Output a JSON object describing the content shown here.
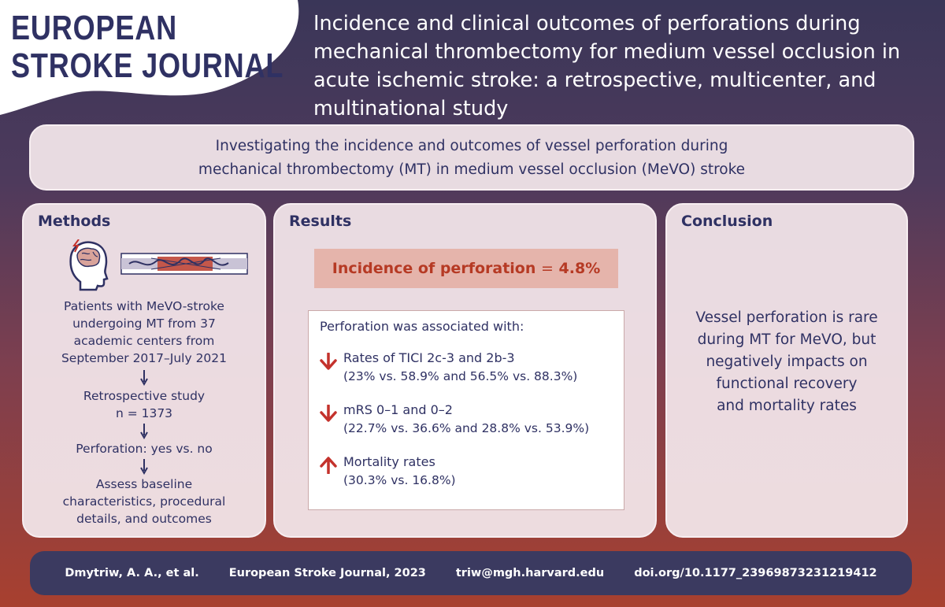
{
  "logo": {
    "line1": "EUROPEAN",
    "line2": "STROKE JOURNAL",
    "brand_color": "#2f3163",
    "accent_color": "#c4322c"
  },
  "title": "Incidence and clinical outcomes of perforations during mechanical thrombectomy for medium vessel occlusion in acute ischemic stroke: a retrospective, multicenter, and multinational study",
  "objective": {
    "line1": "Investigating the incidence and outcomes of vessel perforation during",
    "line2": "mechanical thrombectomy (MT) in medium vessel occlusion (MeVO) stroke"
  },
  "methods": {
    "heading": "Methods",
    "icons": [
      "brain-head-icon",
      "thrombectomy-stent-icon"
    ],
    "step1": [
      "Patients with MeVO-stroke",
      "undergoing MT from 37",
      "academic centers from",
      "September 2017–July 2021"
    ],
    "step2": [
      "Retrospective study",
      "n = 1373"
    ],
    "step3": [
      "Perforation: yes vs. no"
    ],
    "step4": [
      "Assess baseline",
      "characteristics, procedural",
      "details, and outcomes"
    ]
  },
  "results": {
    "heading": "Results",
    "incidence_label": "Incidence of perforation",
    "incidence_equals": "=",
    "incidence_value": "4.8%",
    "assoc_heading": "Perforation was associated with:",
    "items": [
      {
        "direction": "down",
        "label": "Rates of TICI 2c-3 and 2b-3",
        "detail": "(23% vs. 58.9% and 56.5% vs. 88.3%)"
      },
      {
        "direction": "down",
        "label": "mRS 0–1 and 0–2",
        "detail": "(22.7% vs. 36.6% and 28.8% vs. 53.9%)"
      },
      {
        "direction": "up",
        "label": "Mortality rates",
        "detail": "(30.3% vs. 16.8%)"
      }
    ]
  },
  "conclusion": {
    "heading": "Conclusion",
    "lines": [
      "Vessel perforation is rare",
      "during MT for MeVO, but",
      "negatively impacts on",
      "functional recovery",
      "and mortality rates"
    ]
  },
  "footer": {
    "authors": "Dmytriw, A. A., et al.",
    "journal": "European Stroke Journal, 2023",
    "email": "triw@mgh.harvard.edu",
    "doi": "doi.org/10.1177_23969873231219412"
  }
}
